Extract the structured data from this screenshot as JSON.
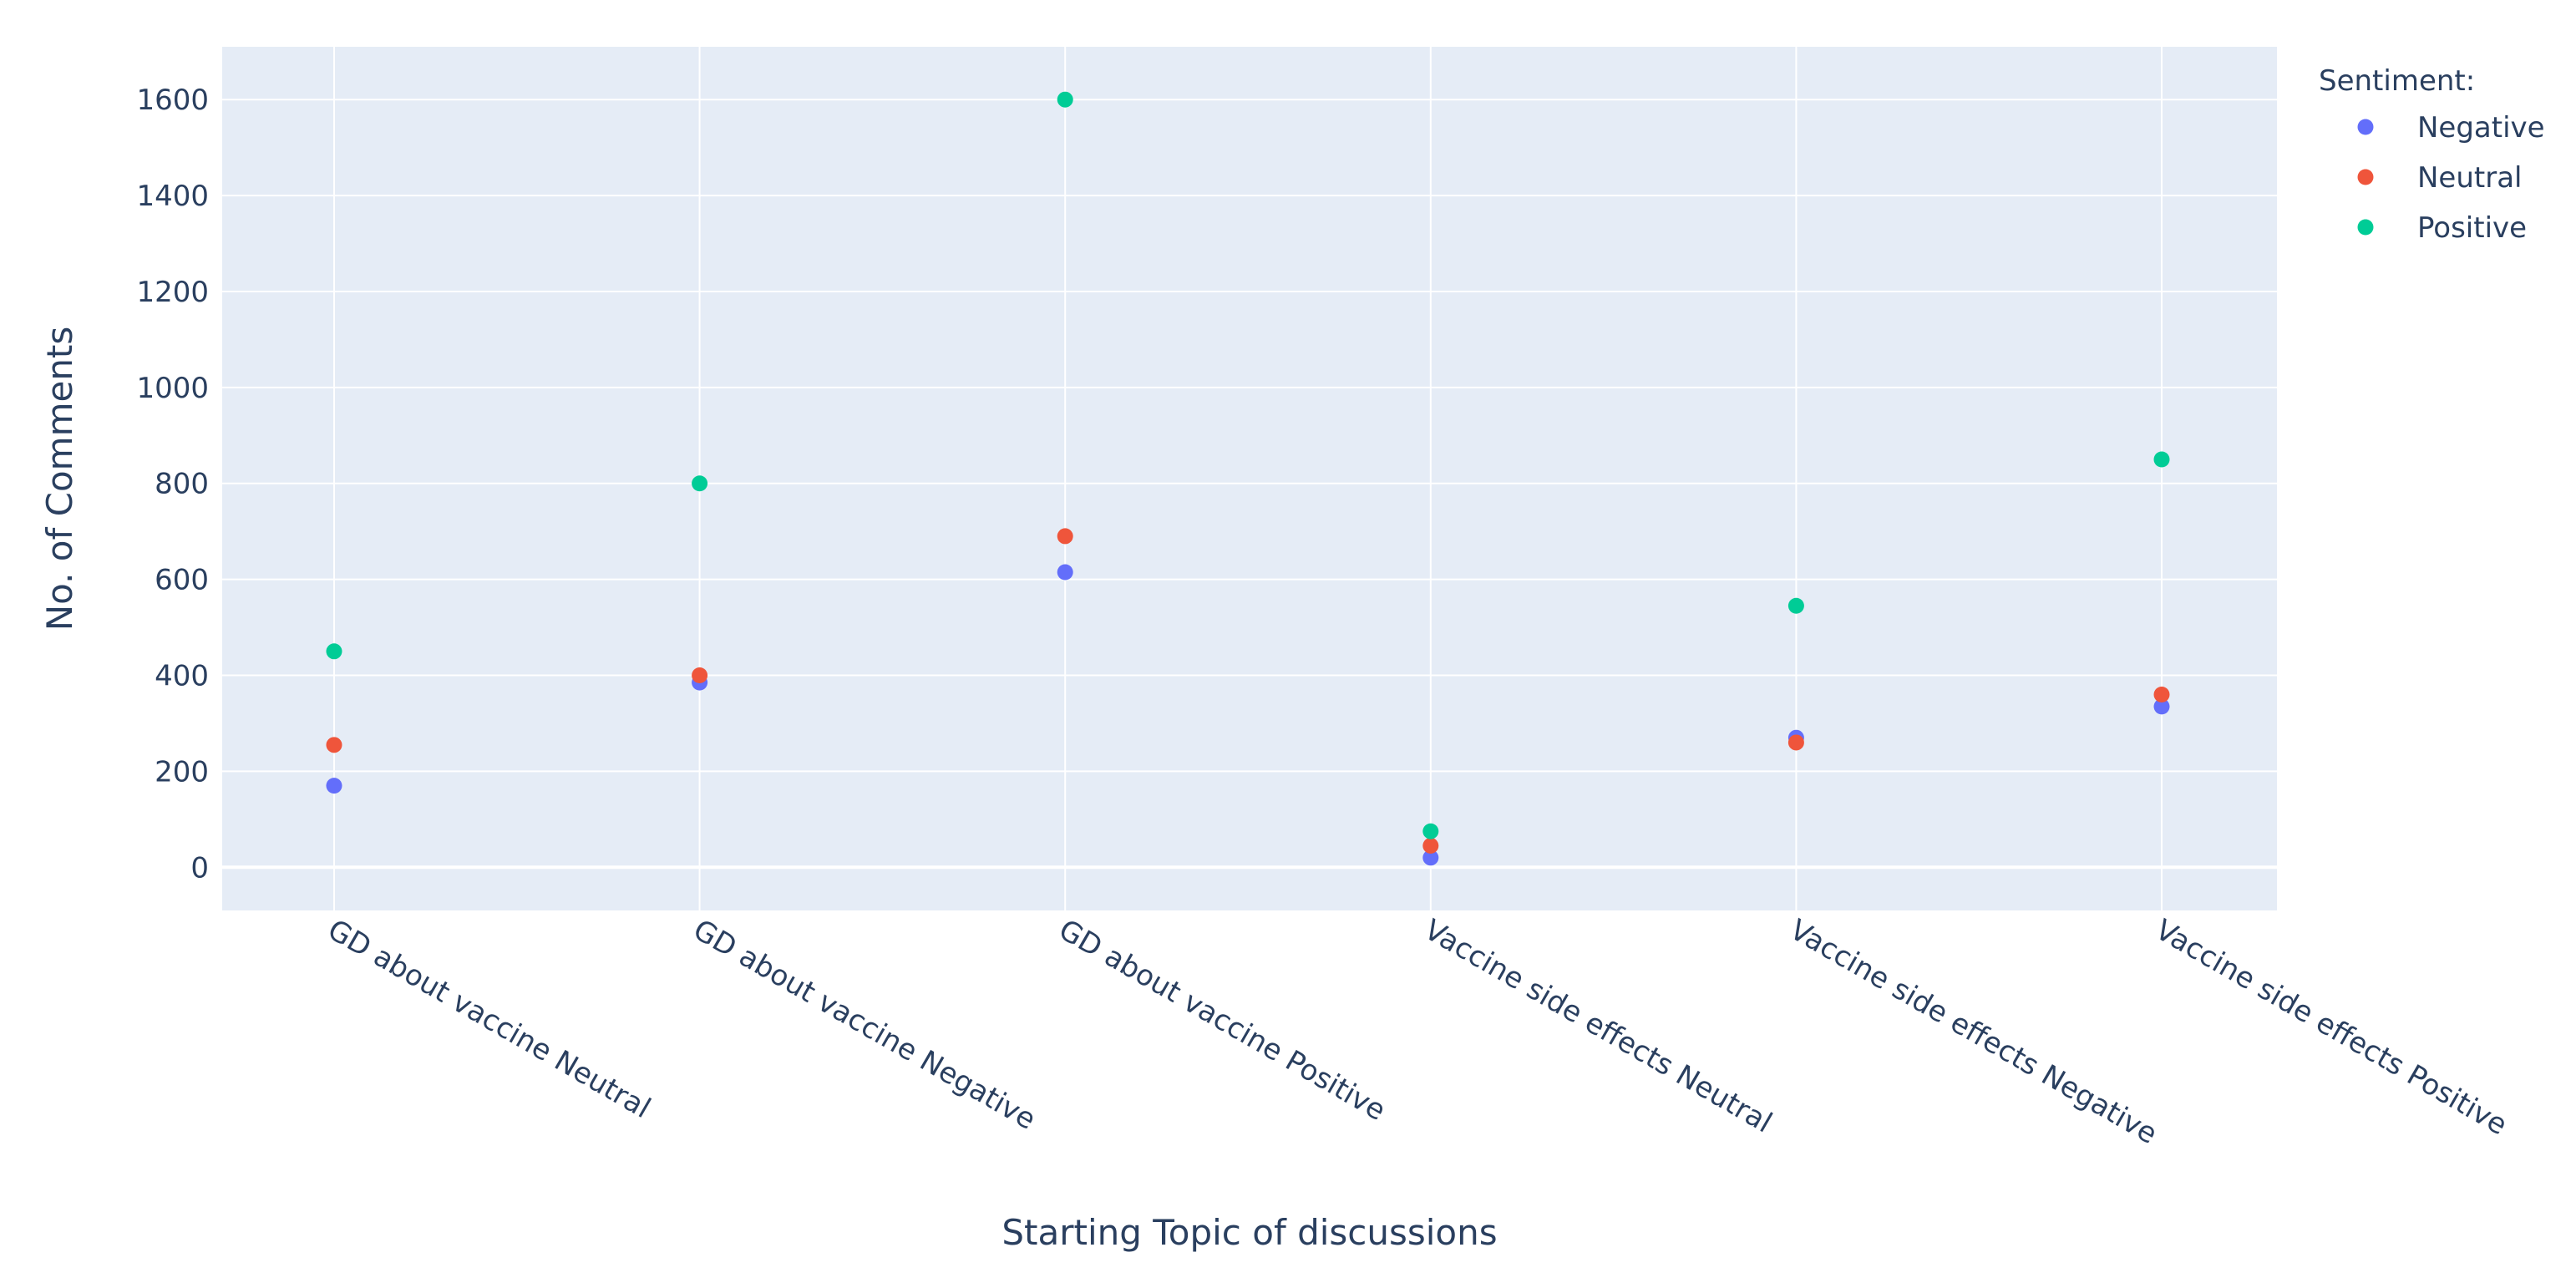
{
  "chart_data": {
    "type": "scatter",
    "xlabel": "Starting Topic of discussions",
    "ylabel": "No. of Comments",
    "ylim": [
      -90,
      1710
    ],
    "yticks": [
      0,
      200,
      400,
      600,
      800,
      1000,
      1200,
      1400,
      1600
    ],
    "grid": true,
    "legend": {
      "title": "Sentiment:",
      "placement": "top-right, outside plot"
    },
    "categories": [
      "GD about vaccine Neutral",
      "GD about vaccine Negative",
      "GD about vaccine Positive",
      "Vaccine side effects Neutral",
      "Vaccine side effects Negative",
      "Vaccine side effects Positive"
    ],
    "series": [
      {
        "name": "Negative",
        "color": "#636efa",
        "values": [
          170,
          385,
          615,
          20,
          270,
          335
        ]
      },
      {
        "name": "Neutral",
        "color": "#ef553b",
        "values": [
          255,
          400,
          690,
          45,
          260,
          360
        ]
      },
      {
        "name": "Positive",
        "color": "#00cc96",
        "values": [
          450,
          800,
          1600,
          75,
          545,
          850
        ]
      }
    ],
    "colors": {
      "plot_background": "#e5ecf6",
      "grid": "#ffffff",
      "text": "#2a3f5f"
    }
  }
}
